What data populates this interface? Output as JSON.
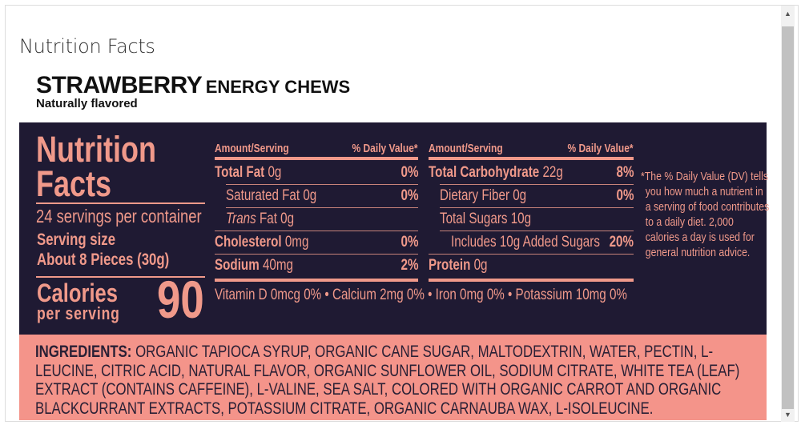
{
  "page_title": "Nutrition Facts",
  "product": {
    "name": "STRAWBERRY",
    "type": "ENERGY CHEWS",
    "subtitle": "Naturally flavored"
  },
  "label": {
    "title_line1": "Nutrition",
    "title_line2": "Facts",
    "servings": "24 servings per container",
    "serving_size_label": "Serving size",
    "serving_size": "About 8 Pieces (30g)",
    "calories_label": "Calories",
    "per_serving": "per serving",
    "calories": "90",
    "col_header_amount": "Amount/Serving",
    "col_header_dv": "% Daily Value*",
    "left_rows": [
      {
        "name": "Total Fat",
        "amount": "0g",
        "dv": "0%",
        "bold": true,
        "indent": 0
      },
      {
        "name": "Saturated Fat",
        "amount": "0g",
        "dv": "0%",
        "bold": false,
        "indent": 1
      },
      {
        "name": "Trans",
        "suffix": "Fat",
        "amount": "0g",
        "dv": "",
        "bold": false,
        "indent": 1,
        "italic": true
      },
      {
        "name": "Cholesterol",
        "amount": "0mg",
        "dv": "0%",
        "bold": true,
        "indent": 0
      },
      {
        "name": "Sodium",
        "amount": "40mg",
        "dv": "2%",
        "bold": true,
        "indent": 0
      }
    ],
    "right_rows": [
      {
        "name": "Total Carbohydrate",
        "amount": "22g",
        "dv": "8%",
        "bold": true,
        "indent": 0
      },
      {
        "name": "Dietary Fiber",
        "amount": "0g",
        "dv": "0%",
        "bold": false,
        "indent": 1
      },
      {
        "name": "Total Sugars",
        "amount": "10g",
        "dv": "",
        "bold": false,
        "indent": 1
      },
      {
        "name": "Includes 10g Added Sugars",
        "amount": "",
        "dv": "20%",
        "bold": false,
        "indent": 2
      },
      {
        "name": "Protein",
        "amount": "0g",
        "dv": "",
        "bold": true,
        "indent": 0
      }
    ],
    "vitamins": "Vitamin D 0mcg 0% • Calcium 2mg 0% • Iron 0mg 0% • Potassium 10mg 0%",
    "dv_note": "*The % Daily Value (DV) tells you how much a nutrient in a serving of food contributes to a daily diet. 2,000 calories a day is used for general nutrition advice.",
    "ingredients_label": "INGREDIENTS:",
    "ingredients": "ORGANIC TAPIOCA SYRUP, ORGANIC CANE SUGAR, MALTODEXTRIN, WATER, PECTIN, L-LEUCINE, CITRIC ACID, NATURAL FLAVOR, ORGANIC SUNFLOWER OIL, SODIUM CITRATE, WHITE TEA (LEAF) EXTRACT (CONTAINS CAFFEINE), L-VALINE, SEA SALT, COLORED WITH ORGANIC CARROT AND ORGANIC BLACKCURRANT EXTRACTS, POTASSIUM CITRATE, ORGANIC CARNAUBA WAX, L-ISOLEUCINE."
  },
  "colors": {
    "dark": "#1f1a33",
    "salmon": "#f0998a",
    "ingredients_bg": "#f4948a"
  },
  "scrollbar": {
    "up_icon": "triangle-up",
    "down_icon": "triangle-down"
  }
}
